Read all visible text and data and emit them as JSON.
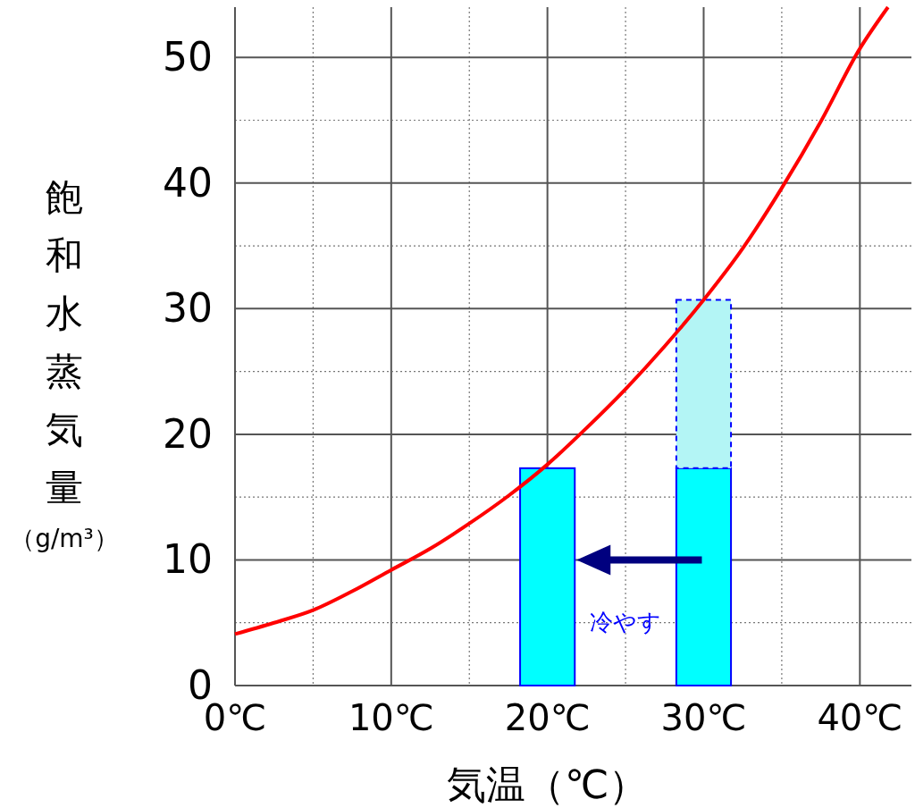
{
  "chart_data": {
    "type": "line",
    "xlabel": "気温（℃）",
    "ylabel": "飽和水蒸気量（g/m³）",
    "xlim": [
      0,
      43.3
    ],
    "ylim": [
      0,
      54
    ],
    "xticks": [
      {
        "value": 0,
        "label": "0℃"
      },
      {
        "value": 5,
        "label": null
      },
      {
        "value": 10,
        "label": "10℃"
      },
      {
        "value": 15,
        "label": null
      },
      {
        "value": 20,
        "label": "20℃"
      },
      {
        "value": 25,
        "label": null
      },
      {
        "value": 30,
        "label": "30℃"
      },
      {
        "value": 35,
        "label": null
      },
      {
        "value": 40,
        "label": "40℃"
      }
    ],
    "yticks": [
      0,
      {
        "value": 5,
        "label": null
      },
      10,
      {
        "value": 15,
        "label": null
      },
      20,
      {
        "value": 25,
        "label": null
      },
      30,
      {
        "value": 35,
        "label": null
      },
      40,
      {
        "value": 45,
        "label": null
      },
      50
    ],
    "grid": true,
    "series": [
      {
        "type": "bar",
        "color": "#00ffff",
        "x": [
          20,
          30
        ],
        "values": [
          17.3,
          17.3
        ]
      },
      {
        "type": "bar",
        "color": "#b3f5f5",
        "line_style": "dashed",
        "x": [
          30
        ],
        "values": [
          13.4
        ],
        "base": [
          17.3
        ]
      },
      {
        "color": "#ff0000",
        "x": [
          0,
          2.5,
          5,
          7.5,
          10,
          12.5,
          15,
          17.5,
          20,
          22.5,
          25,
          27.5,
          30,
          32.5,
          35,
          37.5,
          40,
          41.8
        ],
        "values": [
          4.1,
          5.0,
          6.0,
          7.5,
          9.2,
          10.9,
          12.9,
          15.1,
          17.6,
          20.5,
          23.6,
          27.0,
          30.7,
          34.8,
          39.6,
          44.9,
          50.7,
          54
        ]
      }
    ],
    "annotations": [
      "冷やす"
    ]
  }
}
